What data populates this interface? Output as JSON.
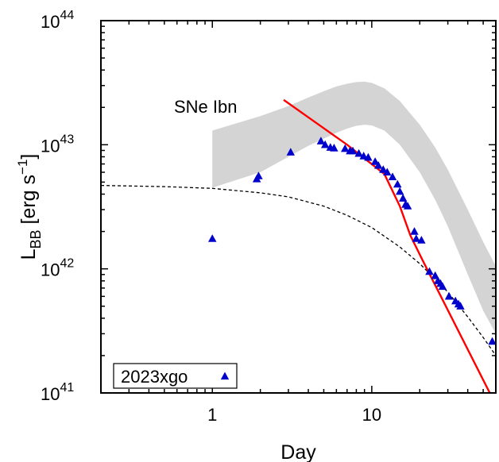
{
  "chart_data": {
    "type": "scatter",
    "xlabel": "Day",
    "ylabel_main": "L",
    "ylabel_sub": "BB",
    "ylabel_units_open": " [erg s",
    "ylabel_units_exp": "−1",
    "ylabel_units_close": "]",
    "x_scale": "log",
    "y_scale": "log",
    "xlim": [
      0.2,
      60
    ],
    "ylim": [
      1e+41,
      1e+44
    ],
    "x_ticks": [
      {
        "value": 1,
        "label": "1"
      },
      {
        "value": 10,
        "label": "10"
      }
    ],
    "y_ticks": [
      {
        "value": 1e+41,
        "base": "10",
        "exp": "41"
      },
      {
        "value": 1e+42,
        "base": "10",
        "exp": "42"
      },
      {
        "value": 1e+43,
        "base": "10",
        "exp": "43"
      },
      {
        "value": 1e+44,
        "base": "10",
        "exp": "44"
      }
    ],
    "grid": false,
    "legend_position": "bottom-left",
    "band": {
      "label": "SNe Ibn",
      "color": "#d4d4d4",
      "label_color": "#9a9a9a",
      "points": [
        {
          "x": 1.0,
          "lo": 4.5e+42,
          "hi": 1.3e+43
        },
        {
          "x": 2.0,
          "lo": 6e+42,
          "hi": 1.7e+43
        },
        {
          "x": 3.0,
          "lo": 8e+42,
          "hi": 2.05e+43
        },
        {
          "x": 4.0,
          "lo": 9.8e+42,
          "hi": 2.4e+43
        },
        {
          "x": 5.0,
          "lo": 1.12e+43,
          "hi": 2.7e+43
        },
        {
          "x": 6.0,
          "lo": 1.25e+43,
          "hi": 2.95e+43
        },
        {
          "x": 7.0,
          "lo": 1.35e+43,
          "hi": 3.1e+43
        },
        {
          "x": 8.0,
          "lo": 1.42e+43,
          "hi": 3.2e+43
        },
        {
          "x": 9.0,
          "lo": 1.45e+43,
          "hi": 3.22e+43
        },
        {
          "x": 10.0,
          "lo": 1.43e+43,
          "hi": 3.15e+43
        },
        {
          "x": 12.0,
          "lo": 1.3e+43,
          "hi": 2.85e+43
        },
        {
          "x": 15.0,
          "lo": 1e+43,
          "hi": 2.25e+43
        },
        {
          "x": 20.0,
          "lo": 6e+42,
          "hi": 1.45e+43
        },
        {
          "x": 25.0,
          "lo": 3.6e+42,
          "hi": 9.5e+42
        },
        {
          "x": 30.0,
          "lo": 2.2e+42,
          "hi": 6.3e+42
        },
        {
          "x": 40.0,
          "lo": 9e+41,
          "hi": 3e+42
        },
        {
          "x": 50.0,
          "lo": 4.6e+41,
          "hi": 1.65e+42
        },
        {
          "x": 60.0,
          "lo": 3e+41,
          "hi": 1.05e+42
        }
      ]
    },
    "fit_line": {
      "color": "#ff0000",
      "points": [
        {
          "x": 2.8,
          "y": 2.3e+43
        },
        {
          "x": 7.0,
          "y": 1e+43
        },
        {
          "x": 12.0,
          "y": 5.8e+42
        },
        {
          "x": 15.0,
          "y": 3.2e+42
        },
        {
          "x": 17.5,
          "y": 1.85e+42
        },
        {
          "x": 21.0,
          "y": 1.15e+42
        },
        {
          "x": 55.0,
          "y": 1e+41
        }
      ]
    },
    "dashed_curve": {
      "color": "#000000",
      "points": [
        {
          "x": 0.2,
          "y": 4.7e+42
        },
        {
          "x": 0.5,
          "y": 4.6e+42
        },
        {
          "x": 1.0,
          "y": 4.45e+42
        },
        {
          "x": 2.0,
          "y": 4.1e+42
        },
        {
          "x": 3.0,
          "y": 3.8e+42
        },
        {
          "x": 5.0,
          "y": 3.2e+42
        },
        {
          "x": 7.0,
          "y": 2.7e+42
        },
        {
          "x": 10.0,
          "y": 2.15e+42
        },
        {
          "x": 15.0,
          "y": 1.5e+42
        },
        {
          "x": 20.0,
          "y": 1.1e+42
        },
        {
          "x": 30.0,
          "y": 6.5e+41
        },
        {
          "x": 40.0,
          "y": 4.1e+41
        },
        {
          "x": 50.0,
          "y": 2.8e+41
        },
        {
          "x": 60.0,
          "y": 2e+41
        }
      ]
    },
    "series": [
      {
        "name": "2023xgo",
        "marker": "triangle",
        "color": "#0000cc",
        "points": [
          {
            "x": 1.0,
            "y": 1.75e+42
          },
          {
            "x": 1.9,
            "y": 5.3e+42
          },
          {
            "x": 1.95,
            "y": 5.6e+42
          },
          {
            "x": 3.1,
            "y": 8.7e+42
          },
          {
            "x": 4.8,
            "y": 1.07e+43
          },
          {
            "x": 5.1,
            "y": 1e+43
          },
          {
            "x": 5.5,
            "y": 9.5e+42
          },
          {
            "x": 5.8,
            "y": 9.4e+42
          },
          {
            "x": 6.8,
            "y": 9.3e+42
          },
          {
            "x": 7.3,
            "y": 8.9e+42
          },
          {
            "x": 7.6,
            "y": 8.9e+42
          },
          {
            "x": 8.3,
            "y": 8.5e+42
          },
          {
            "x": 8.9,
            "y": 8.1e+42
          },
          {
            "x": 9.5,
            "y": 7.9e+42
          },
          {
            "x": 10.5,
            "y": 7.3e+42
          },
          {
            "x": 11.0,
            "y": 6.8e+42
          },
          {
            "x": 11.8,
            "y": 6.3e+42
          },
          {
            "x": 12.5,
            "y": 6e+42
          },
          {
            "x": 13.5,
            "y": 5.5e+42
          },
          {
            "x": 14.5,
            "y": 4.8e+42
          },
          {
            "x": 15.0,
            "y": 4.2e+42
          },
          {
            "x": 15.7,
            "y": 3.7e+42
          },
          {
            "x": 16.3,
            "y": 3.3e+42
          },
          {
            "x": 16.8,
            "y": 3.2e+42
          },
          {
            "x": 18.5,
            "y": 2e+42
          },
          {
            "x": 19.0,
            "y": 1.75e+42
          },
          {
            "x": 20.5,
            "y": 1.7e+42
          },
          {
            "x": 23.0,
            "y": 9.5e+41
          },
          {
            "x": 25.0,
            "y": 8.8e+41
          },
          {
            "x": 26.0,
            "y": 8e+41
          },
          {
            "x": 27.0,
            "y": 7.6e+41
          },
          {
            "x": 27.8,
            "y": 7.2e+41
          },
          {
            "x": 30.5,
            "y": 6e+41
          },
          {
            "x": 33.5,
            "y": 5.5e+41
          },
          {
            "x": 35.0,
            "y": 5.2e+41
          },
          {
            "x": 36.0,
            "y": 5e+41
          },
          {
            "x": 57.0,
            "y": 2.6e+41
          }
        ]
      }
    ]
  }
}
